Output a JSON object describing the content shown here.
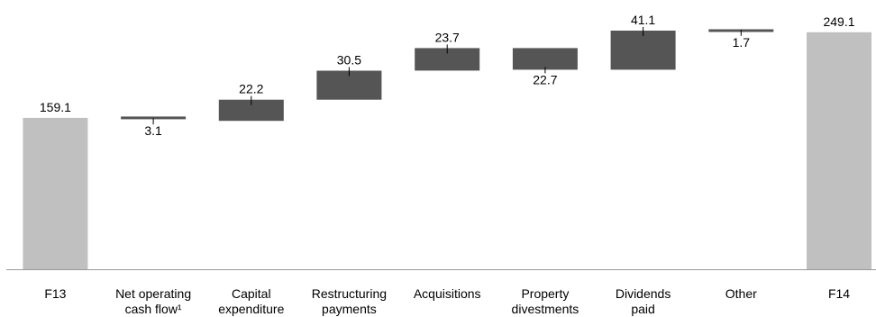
{
  "chart_data": {
    "type": "waterfall",
    "categories": [
      [
        "F13"
      ],
      [
        "Net operating",
        "cash flow¹"
      ],
      [
        "Capital",
        "expenditure"
      ],
      [
        "Restructuring",
        "payments"
      ],
      [
        "Acquisitions"
      ],
      [
        "Property",
        "divestments"
      ],
      [
        "Dividends",
        "paid"
      ],
      [
        "Other"
      ],
      [
        "F14"
      ]
    ],
    "bars": [
      {
        "kind": "total",
        "start": 0,
        "end": 159.1,
        "label": "159.1"
      },
      {
        "kind": "step",
        "start": 159.1,
        "end": 156.0,
        "label": "3.1"
      },
      {
        "kind": "step",
        "start": 156.0,
        "end": 178.2,
        "label": "22.2"
      },
      {
        "kind": "step",
        "start": 178.2,
        "end": 208.7,
        "label": "30.5"
      },
      {
        "kind": "step",
        "start": 208.7,
        "end": 232.4,
        "label": "23.7"
      },
      {
        "kind": "step",
        "start": 232.4,
        "end": 209.7,
        "label": "22.7"
      },
      {
        "kind": "step",
        "start": 209.7,
        "end": 250.8,
        "label": "41.1"
      },
      {
        "kind": "step",
        "start": 250.8,
        "end": 249.1,
        "label": "1.7"
      },
      {
        "kind": "total",
        "start": 0,
        "end": 249.1,
        "label": "249.1"
      }
    ],
    "ylim": [
      0,
      265
    ],
    "grid": false,
    "colors": {
      "total": "#c0c0c0",
      "step": "#555555",
      "axis": "#999999"
    }
  }
}
